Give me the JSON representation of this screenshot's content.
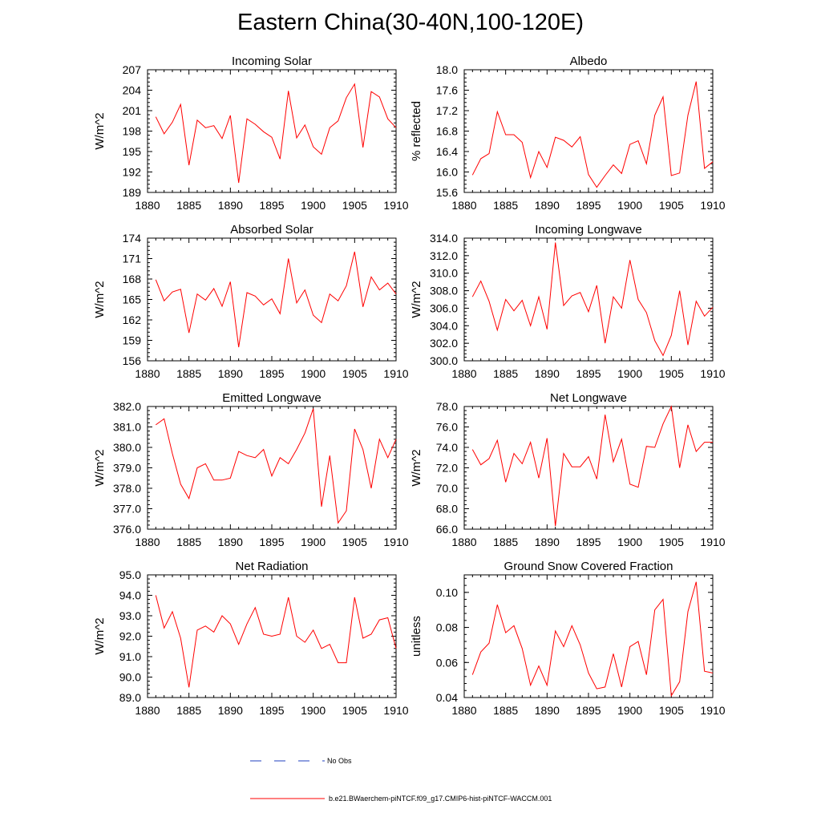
{
  "title": "Eastern China(30-40N,100-120E)",
  "legend": {
    "no_obs_label": "No Obs",
    "model_label": "b.e21.BWaerchem-piNTCF.f09_g17.CMIP6-hist-piNTCF-WACCM.001",
    "model_color": "#ff0000",
    "no_obs_color": "#1f3fbf"
  },
  "chart_data": [
    {
      "type": "line",
      "title": "Incoming Solar",
      "ylabel": "W/m^2",
      "xlim": [
        1880,
        1910
      ],
      "ylim": [
        189,
        207
      ],
      "xticks": [
        1880,
        1885,
        1890,
        1895,
        1900,
        1905,
        1910
      ],
      "yticks": [
        "189",
        "192",
        "195",
        "198",
        "201",
        "204",
        "207"
      ],
      "series": [
        {
          "color": "#ff0000",
          "x": [
            1881,
            1882,
            1883,
            1884,
            1885,
            1886,
            1887,
            1888,
            1889,
            1890,
            1891,
            1892,
            1893,
            1894,
            1895,
            1896,
            1897,
            1898,
            1899,
            1900,
            1901,
            1902,
            1903,
            1904,
            1905,
            1906,
            1907,
            1908,
            1909,
            1910
          ],
          "values": [
            200.1,
            197.6,
            199.3,
            201.9,
            193.0,
            199.6,
            198.5,
            198.8,
            196.9,
            200.3,
            190.4,
            199.8,
            199.0,
            197.9,
            197.1,
            193.9,
            203.9,
            197.0,
            198.9,
            195.7,
            194.6,
            198.5,
            199.5,
            202.9,
            204.9,
            195.6,
            203.8,
            203.0,
            199.8,
            198.5
          ]
        }
      ]
    },
    {
      "type": "line",
      "title": "Albedo",
      "ylabel": "% reflected",
      "xlim": [
        1880,
        1910
      ],
      "ylim": [
        15.6,
        18.0
      ],
      "xticks": [
        1880,
        1885,
        1890,
        1895,
        1900,
        1905,
        1910
      ],
      "yticks": [
        "15.6",
        "16.0",
        "16.4",
        "16.8",
        "17.2",
        "17.6",
        "18.0"
      ],
      "series": [
        {
          "color": "#ff0000",
          "x": [
            1881,
            1882,
            1883,
            1884,
            1885,
            1886,
            1887,
            1888,
            1889,
            1890,
            1891,
            1892,
            1893,
            1894,
            1895,
            1896,
            1897,
            1898,
            1899,
            1900,
            1901,
            1902,
            1903,
            1904,
            1905,
            1906,
            1907,
            1908,
            1909,
            1910
          ],
          "values": [
            15.94,
            16.26,
            16.36,
            17.18,
            16.73,
            16.73,
            16.58,
            15.89,
            16.4,
            16.09,
            16.68,
            16.62,
            16.49,
            16.69,
            15.95,
            15.7,
            15.93,
            16.14,
            15.97,
            16.54,
            16.61,
            16.16,
            17.11,
            17.47,
            15.93,
            15.98,
            17.11,
            17.77,
            16.07,
            16.2
          ]
        }
      ]
    },
    {
      "type": "line",
      "title": "Absorbed Solar",
      "ylabel": "W/m^2",
      "xlim": [
        1880,
        1910
      ],
      "ylim": [
        156,
        174
      ],
      "xticks": [
        1880,
        1885,
        1890,
        1895,
        1900,
        1905,
        1910
      ],
      "yticks": [
        "156",
        "159",
        "162",
        "165",
        "168",
        "171",
        "174"
      ],
      "series": [
        {
          "color": "#ff0000",
          "x": [
            1881,
            1882,
            1883,
            1884,
            1885,
            1886,
            1887,
            1888,
            1889,
            1890,
            1891,
            1892,
            1893,
            1894,
            1895,
            1896,
            1897,
            1898,
            1899,
            1900,
            1901,
            1902,
            1903,
            1904,
            1905,
            1906,
            1907,
            1908,
            1909,
            1910
          ],
          "values": [
            167.9,
            164.8,
            166.1,
            166.5,
            160.1,
            165.8,
            164.9,
            166.6,
            164.0,
            167.6,
            158.0,
            166.0,
            165.5,
            164.2,
            165.1,
            162.9,
            171.0,
            164.5,
            166.4,
            162.7,
            161.6,
            165.8,
            164.8,
            167.0,
            172.0,
            163.9,
            168.3,
            166.4,
            167.4,
            165.8
          ]
        }
      ]
    },
    {
      "type": "line",
      "title": "Incoming Longwave",
      "ylabel": "W/m^2",
      "xlim": [
        1880,
        1910
      ],
      "ylim": [
        300.0,
        314.0
      ],
      "xticks": [
        1880,
        1885,
        1890,
        1895,
        1900,
        1905,
        1910
      ],
      "yticks": [
        "300.0",
        "302.0",
        "304.0",
        "306.0",
        "308.0",
        "310.0",
        "312.0",
        "314.0"
      ],
      "series": [
        {
          "color": "#ff0000",
          "x": [
            1881,
            1882,
            1883,
            1884,
            1885,
            1886,
            1887,
            1888,
            1889,
            1890,
            1891,
            1892,
            1893,
            1894,
            1895,
            1896,
            1897,
            1898,
            1899,
            1900,
            1901,
            1902,
            1903,
            1904,
            1905,
            1906,
            1907,
            1908,
            1909,
            1910
          ],
          "values": [
            307.3,
            309.1,
            306.8,
            303.5,
            307.0,
            305.7,
            306.9,
            304.0,
            307.3,
            303.6,
            313.5,
            306.3,
            307.4,
            307.8,
            305.6,
            308.6,
            302.0,
            307.3,
            306.0,
            311.5,
            307.0,
            305.5,
            302.3,
            300.6,
            302.9,
            308.0,
            301.8,
            306.8,
            305.1,
            306.1
          ]
        }
      ]
    },
    {
      "type": "line",
      "title": "Emitted Longwave",
      "ylabel": "W/m^2",
      "xlim": [
        1880,
        1910
      ],
      "ylim": [
        376.0,
        382.0
      ],
      "xticks": [
        1880,
        1885,
        1890,
        1895,
        1900,
        1905,
        1910
      ],
      "yticks": [
        "376.0",
        "377.0",
        "378.0",
        "379.0",
        "380.0",
        "381.0",
        "382.0"
      ],
      "series": [
        {
          "color": "#ff0000",
          "x": [
            1881,
            1882,
            1883,
            1884,
            1885,
            1886,
            1887,
            1888,
            1889,
            1890,
            1891,
            1892,
            1893,
            1894,
            1895,
            1896,
            1897,
            1898,
            1899,
            1900,
            1901,
            1902,
            1903,
            1904,
            1905,
            1906,
            1907,
            1908,
            1909,
            1910
          ],
          "values": [
            381.1,
            381.4,
            379.7,
            378.2,
            377.5,
            379.0,
            379.2,
            378.4,
            378.4,
            378.5,
            379.8,
            379.6,
            379.5,
            379.9,
            378.6,
            379.5,
            379.2,
            379.9,
            380.7,
            381.9,
            377.1,
            379.6,
            376.3,
            376.9,
            380.9,
            379.9,
            378.0,
            380.4,
            379.5,
            380.4
          ]
        }
      ]
    },
    {
      "type": "line",
      "title": "Net Longwave",
      "ylabel": "W/m^2",
      "xlim": [
        1880,
        1910
      ],
      "ylim": [
        66.0,
        78.0
      ],
      "xticks": [
        1880,
        1885,
        1890,
        1895,
        1900,
        1905,
        1910
      ],
      "yticks": [
        "66.0",
        "68.0",
        "70.0",
        "72.0",
        "74.0",
        "76.0",
        "78.0"
      ],
      "series": [
        {
          "color": "#ff0000",
          "x": [
            1881,
            1882,
            1883,
            1884,
            1885,
            1886,
            1887,
            1888,
            1889,
            1890,
            1891,
            1892,
            1893,
            1894,
            1895,
            1896,
            1897,
            1898,
            1899,
            1900,
            1901,
            1902,
            1903,
            1904,
            1905,
            1906,
            1907,
            1908,
            1909,
            1910
          ],
          "values": [
            73.8,
            72.3,
            72.9,
            74.7,
            70.6,
            73.4,
            72.4,
            74.5,
            71.0,
            74.9,
            66.3,
            73.4,
            72.1,
            72.1,
            73.1,
            70.9,
            77.2,
            72.6,
            74.8,
            70.4,
            70.1,
            74.1,
            74.0,
            76.3,
            78.0,
            72.0,
            76.2,
            73.6,
            74.5,
            74.5
          ]
        }
      ]
    },
    {
      "type": "line",
      "title": "Net Radiation",
      "ylabel": "W/m^2",
      "xlim": [
        1880,
        1910
      ],
      "ylim": [
        89.0,
        95.0
      ],
      "xticks": [
        1880,
        1885,
        1890,
        1895,
        1900,
        1905,
        1910
      ],
      "yticks": [
        "89.0",
        "90.0",
        "91.0",
        "92.0",
        "93.0",
        "94.0",
        "95.0"
      ],
      "series": [
        {
          "color": "#ff0000",
          "x": [
            1881,
            1882,
            1883,
            1884,
            1885,
            1886,
            1887,
            1888,
            1889,
            1890,
            1891,
            1892,
            1893,
            1894,
            1895,
            1896,
            1897,
            1898,
            1899,
            1900,
            1901,
            1902,
            1903,
            1904,
            1905,
            1906,
            1907,
            1908,
            1909,
            1910
          ],
          "values": [
            94.0,
            92.4,
            93.2,
            91.9,
            89.5,
            92.3,
            92.5,
            92.2,
            93.0,
            92.6,
            91.6,
            92.6,
            93.4,
            92.1,
            92.0,
            92.1,
            93.9,
            92.0,
            91.7,
            92.3,
            91.4,
            91.6,
            90.7,
            90.7,
            93.9,
            91.9,
            92.1,
            92.8,
            92.9,
            91.4
          ]
        }
      ]
    },
    {
      "type": "line",
      "title": "Ground Snow Covered Fraction",
      "ylabel": "unitless",
      "xlim": [
        1880,
        1910
      ],
      "ylim": [
        0.04,
        0.11
      ],
      "xticks": [
        1880,
        1885,
        1890,
        1895,
        1900,
        1905,
        1910
      ],
      "yticks": [
        "0.04",
        "0.06",
        "0.08",
        "0.10"
      ],
      "ytick_values": [
        0.04,
        0.06,
        0.08,
        0.1
      ],
      "series": [
        {
          "color": "#ff0000",
          "x": [
            1881,
            1882,
            1883,
            1884,
            1885,
            1886,
            1887,
            1888,
            1889,
            1890,
            1891,
            1892,
            1893,
            1894,
            1895,
            1896,
            1897,
            1898,
            1899,
            1900,
            1901,
            1902,
            1903,
            1904,
            1905,
            1906,
            1907,
            1908,
            1909,
            1910
          ],
          "values": [
            0.053,
            0.066,
            0.071,
            0.093,
            0.077,
            0.081,
            0.068,
            0.047,
            0.058,
            0.047,
            0.078,
            0.069,
            0.081,
            0.07,
            0.054,
            0.045,
            0.046,
            0.065,
            0.046,
            0.069,
            0.072,
            0.053,
            0.09,
            0.096,
            0.041,
            0.049,
            0.089,
            0.106,
            0.055,
            0.054
          ]
        }
      ]
    }
  ]
}
